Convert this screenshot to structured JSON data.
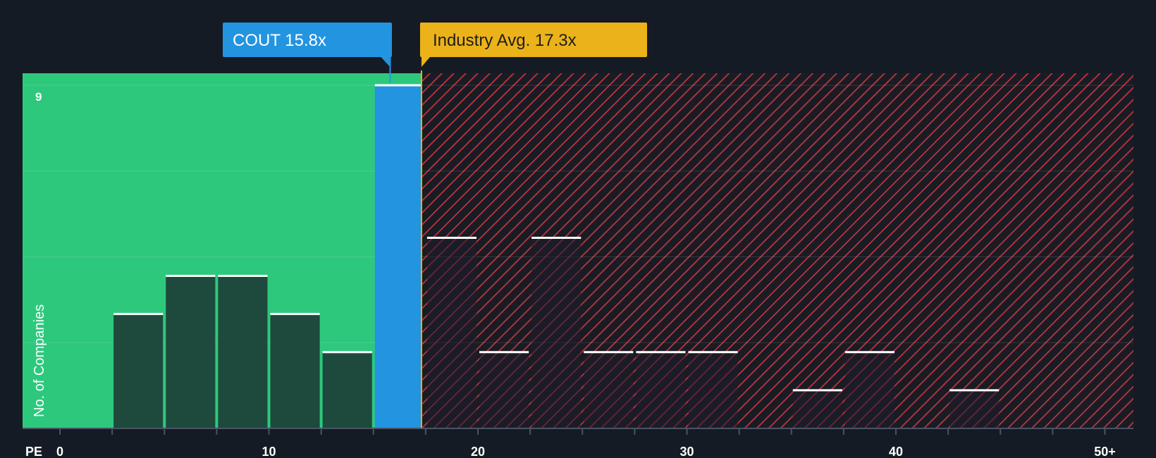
{
  "chart_data": {
    "type": "bar",
    "xlabel": "PE",
    "ylabel": "No. of Companies",
    "ymax_label": "9",
    "ylim": [
      0,
      9
    ],
    "xlim": [
      0,
      52
    ],
    "bin_width": 2.5,
    "x_ticks": [
      {
        "value": 0,
        "label": "0"
      },
      {
        "value": 10,
        "label": "10"
      },
      {
        "value": 20,
        "label": "20"
      },
      {
        "value": 30,
        "label": "30"
      },
      {
        "value": 40,
        "label": "40"
      },
      {
        "value": 50,
        "label": "50+"
      }
    ],
    "minor_ticks": [
      0,
      2.5,
      5,
      7.5,
      10,
      12.5,
      15,
      17.5,
      20,
      22.5,
      25,
      27.5,
      30,
      32.5,
      35,
      37.5,
      40,
      42.5,
      45,
      47.5,
      50
    ],
    "bins": [
      {
        "start": 2.5,
        "count": 3
      },
      {
        "start": 5,
        "count": 4
      },
      {
        "start": 7.5,
        "count": 4
      },
      {
        "start": 10,
        "count": 3
      },
      {
        "start": 12.5,
        "count": 2
      },
      {
        "start": 15,
        "count": 9,
        "highlight": true
      },
      {
        "start": 17.5,
        "count": 5
      },
      {
        "start": 20,
        "count": 2
      },
      {
        "start": 22.5,
        "count": 5
      },
      {
        "start": 25,
        "count": 2
      },
      {
        "start": 27.5,
        "count": 2
      },
      {
        "start": 30,
        "count": 2
      },
      {
        "start": 35,
        "count": 1
      },
      {
        "start": 37.5,
        "count": 2
      },
      {
        "start": 42.5,
        "count": 1
      }
    ],
    "company": {
      "label": "COUT 15.8x",
      "value": 15.8
    },
    "industry": {
      "label": "Industry Avg. 17.3x",
      "value": 17.3
    },
    "colors": {
      "background": "#151b24",
      "undervalued": "#2ec87d",
      "overvalued": "#c0343d",
      "highlight": "#2394e0",
      "bar_dark": "#1d4a3c",
      "industry": "#ebb219",
      "bar_top": "#ffffff"
    }
  }
}
